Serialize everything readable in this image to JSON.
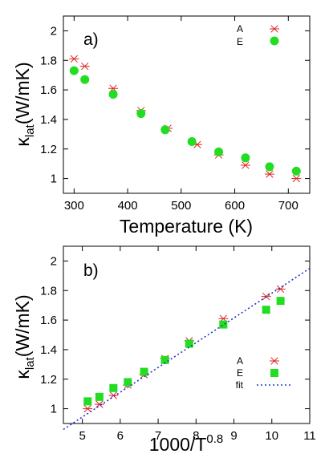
{
  "chart_data": [
    {
      "type": "scatter",
      "panel_label": "a)",
      "xlabel": "Temperature (K)",
      "ylabel_main": "κ",
      "ylabel_sub": "lat",
      "ylabel_rest": "(W/mK)",
      "xlim": [
        280,
        740
      ],
      "ylim": [
        0.9,
        2.1
      ],
      "xticks": [
        "300",
        "400",
        "500",
        "600",
        "700"
      ],
      "xtick_values": [
        300,
        400,
        500,
        600,
        700
      ],
      "yticks": [
        "1",
        "1.2",
        "1.4",
        "1.6",
        "1.8",
        "2"
      ],
      "ytick_values": [
        1,
        1.2,
        1.4,
        1.6,
        1.8,
        2
      ],
      "legend_position": "top-right",
      "series": [
        {
          "name": "A",
          "marker": "asterisk",
          "color": "#dd2222",
          "x": [
            300,
            320,
            373,
            425,
            475,
            530,
            570,
            620,
            665,
            715
          ],
          "y": [
            1.81,
            1.76,
            1.61,
            1.46,
            1.34,
            1.23,
            1.16,
            1.09,
            1.03,
            1.0
          ]
        },
        {
          "name": "E",
          "marker": "circle",
          "color": "#22dd22",
          "x": [
            300,
            320,
            373,
            425,
            470,
            520,
            570,
            620,
            665,
            715
          ],
          "y": [
            1.73,
            1.67,
            1.57,
            1.44,
            1.33,
            1.25,
            1.18,
            1.14,
            1.08,
            1.05
          ]
        }
      ]
    },
    {
      "type": "scatter",
      "panel_label": "b)",
      "xlabel_main": "1000/T",
      "xlabel_sup": "0.8",
      "ylabel_main": "κ",
      "ylabel_sub": "lat",
      "ylabel_rest": "(W/mK)",
      "xlim": [
        4.5,
        11
      ],
      "ylim": [
        0.9,
        2.1
      ],
      "xticks": [
        "5",
        "6",
        "7",
        "8",
        "9",
        "10",
        "11"
      ],
      "xtick_values": [
        5,
        6,
        7,
        8,
        9,
        10,
        11
      ],
      "yticks": [
        "1",
        "1.2",
        "1.4",
        "1.6",
        "1.8",
        "2"
      ],
      "ytick_values": [
        1,
        1.2,
        1.4,
        1.6,
        1.8,
        2
      ],
      "legend_position": "bottom-right",
      "series": [
        {
          "name": "A",
          "marker": "asterisk",
          "color": "#dd2222",
          "x": [
            5.14,
            5.45,
            5.82,
            6.2,
            6.63,
            7.18,
            7.82,
            8.72,
            9.85,
            10.23
          ],
          "y": [
            1.0,
            1.03,
            1.09,
            1.16,
            1.23,
            1.34,
            1.46,
            1.61,
            1.76,
            1.81
          ]
        },
        {
          "name": "E",
          "marker": "square",
          "color": "#22dd22",
          "x": [
            5.14,
            5.45,
            5.82,
            6.2,
            6.63,
            7.18,
            7.82,
            8.72,
            9.85,
            10.23
          ],
          "y": [
            1.05,
            1.08,
            1.14,
            1.18,
            1.25,
            1.33,
            1.44,
            1.57,
            1.67,
            1.73
          ]
        },
        {
          "name": "fit",
          "marker": "line",
          "style": "dotted",
          "color": "#2233cc",
          "x": [
            4.5,
            11
          ],
          "y": [
            0.86,
            1.95
          ]
        }
      ]
    }
  ]
}
